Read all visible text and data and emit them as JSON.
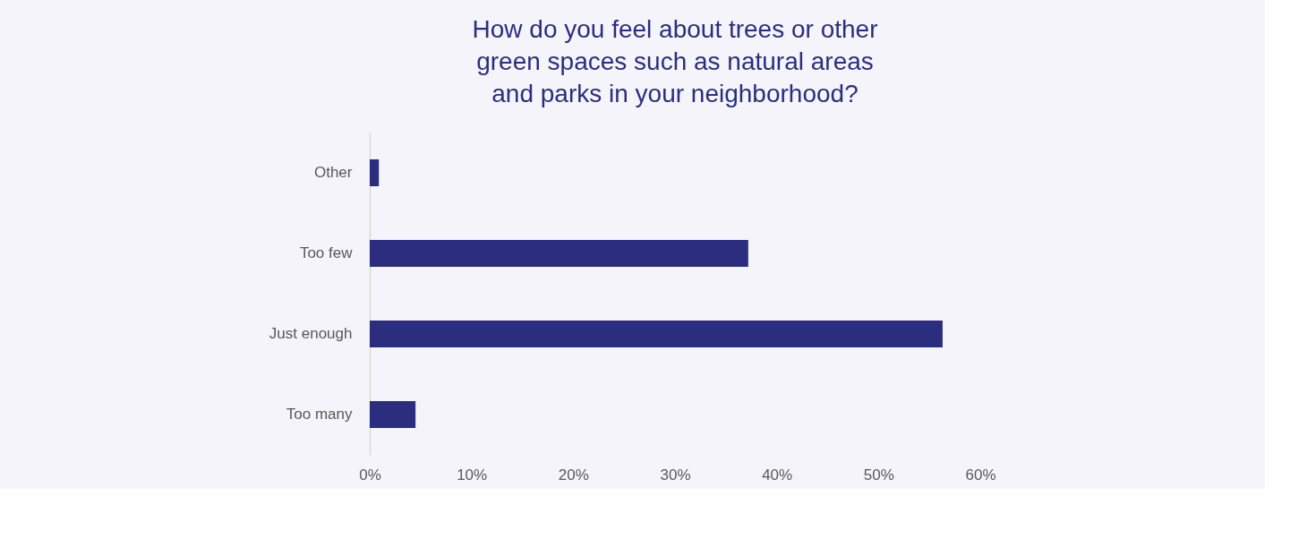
{
  "chart_data": {
    "type": "bar",
    "orientation": "horizontal",
    "title": "How do you feel about trees or other\ngreen spaces such as natural areas\nand parks in your neighborhood?",
    "categories": [
      "Other",
      "Too few",
      "Just enough",
      "Too many"
    ],
    "values": [
      0.9,
      37.2,
      56.3,
      4.5
    ],
    "color": "#2b2e7e",
    "xlim": [
      0,
      60
    ],
    "xticks": [
      {
        "value": 0,
        "label": "0%"
      },
      {
        "value": 10,
        "label": "10%"
      },
      {
        "value": 20,
        "label": "20%"
      },
      {
        "value": 30,
        "label": "30%"
      },
      {
        "value": 40,
        "label": "40%"
      },
      {
        "value": 50,
        "label": "50%"
      },
      {
        "value": 60,
        "label": "60%"
      }
    ],
    "grid": false
  }
}
